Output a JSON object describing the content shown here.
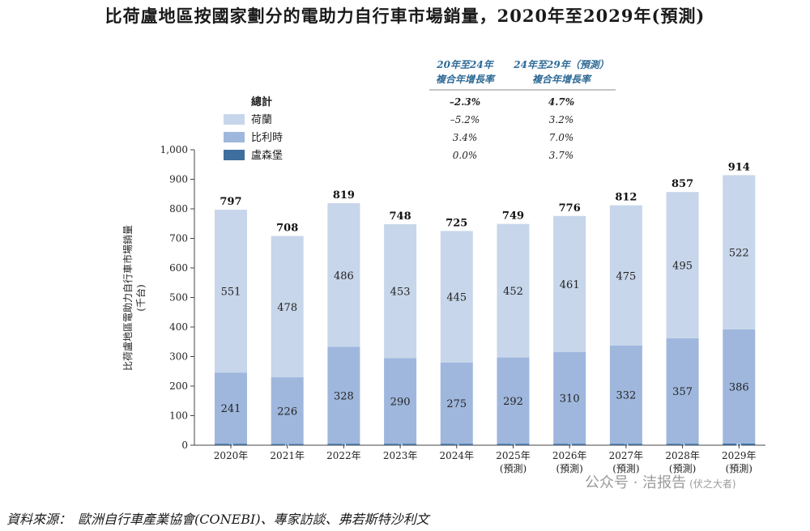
{
  "title": "比荷盧地區按國家劃分的電助力自行車市場銷量，2020年至2029年(預測)",
  "source": "資料來源：　歐洲自行車產業協會(CONEBI)、專家訪談、弗若斯特沙利文",
  "watermark": "公众号 · 洁报告",
  "watermark_sub": "(伏之大者)",
  "chart_data": {
    "type": "bar",
    "stacked": true,
    "title": "比荷盧地區按國家劃分的電助力自行車市場銷量，2020年至2029年(預測)",
    "ylabel": "比荷盧地區電助力自行車市場銷量",
    "ylabel_unit": "(千台)",
    "ylim": [
      0,
      1000
    ],
    "yticks": [
      "0",
      "100",
      "200",
      "300",
      "400",
      "500",
      "600",
      "700",
      "800",
      "900",
      "1,000"
    ],
    "categories": [
      "2020年",
      "2021年",
      "2022年",
      "2023年",
      "2024年",
      "2025年",
      "2026年",
      "2027年",
      "2028年",
      "2029年"
    ],
    "category_sub": [
      "",
      "",
      "",
      "",
      "",
      "(預測)",
      "(預測)",
      "(預測)",
      "(預測)",
      "(預測)"
    ],
    "series": [
      {
        "name": "盧森堡",
        "color": "#3e6e9e",
        "values": [
          5,
          4,
          5,
          5,
          5,
          5,
          5,
          5,
          5,
          6
        ]
      },
      {
        "name": "比利時",
        "color": "#9fb7dd",
        "values": [
          241,
          226,
          328,
          290,
          275,
          292,
          310,
          332,
          357,
          386
        ]
      },
      {
        "name": "荷蘭",
        "color": "#c7d6ea",
        "values": [
          551,
          478,
          486,
          453,
          445,
          452,
          461,
          475,
          495,
          522
        ]
      }
    ],
    "totals": [
      797,
      708,
      819,
      748,
      725,
      749,
      776,
      812,
      857,
      914
    ],
    "legend_position": "top-left",
    "cagr_headers": [
      "20年至24年\n複合年增長率",
      "24年至29年（預測）\n複合年增長率"
    ],
    "cagr_rows": [
      {
        "label": "總計",
        "v1": "–2.3%",
        "v2": "4.7%"
      },
      {
        "label": "荷蘭",
        "v1": "–5.2%",
        "v2": "3.2%",
        "color": "#c7d6ea"
      },
      {
        "label": "比利時",
        "v1": "3.4%",
        "v2": "7.0%",
        "color": "#9fb7dd"
      },
      {
        "label": "盧森堡",
        "v1": "0.0%",
        "v2": "3.7%",
        "color": "#3e6e9e"
      }
    ]
  }
}
